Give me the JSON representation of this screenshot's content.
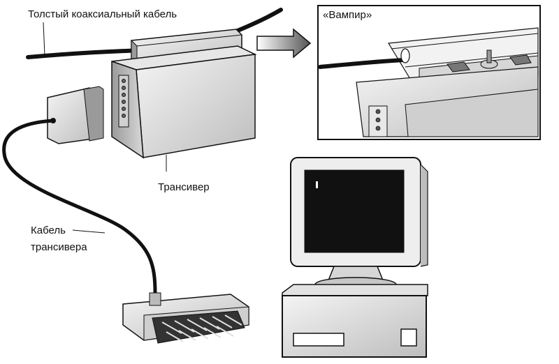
{
  "labels": {
    "thick_coax": "Толстый коаксиальный кабель",
    "vampire": "«Вампир»",
    "transceiver": "Трансивер",
    "transceiver_cable_line1": "Кабель",
    "transceiver_cable_line2": "трансивера"
  },
  "colors": {
    "ink": "#111111",
    "shade": "#bdbdbd",
    "light": "#ececec",
    "screen": "#111111"
  }
}
